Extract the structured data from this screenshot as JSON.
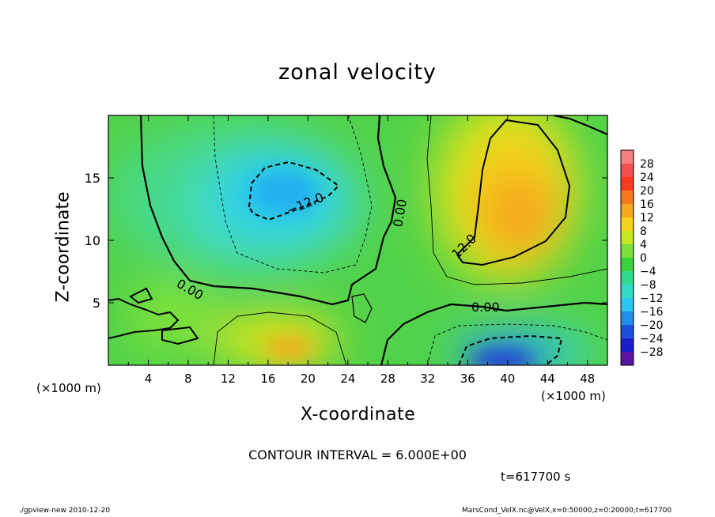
{
  "chart_data": {
    "type": "heatmap",
    "title": "zonal velocity",
    "xlabel": "X-coordinate",
    "ylabel": "Z-coordinate",
    "x_unit_left": "(×1000 m)",
    "x_unit_right": "(×1000 m)",
    "xlim": [
      0,
      50
    ],
    "ylim": [
      0,
      20
    ],
    "x_ticks": [
      "4",
      "8",
      "12",
      "16",
      "20",
      "24",
      "28",
      "32",
      "36",
      "40",
      "44",
      "48"
    ],
    "y_ticks": [
      "5",
      "10",
      "15"
    ],
    "colorbar_labels": [
      "28",
      "24",
      "20",
      "16",
      "12",
      "8",
      "4",
      "0",
      "−4",
      "−8",
      "−12",
      "−16",
      "−20",
      "−24",
      "−28"
    ],
    "contour_labels": [
      "−12.0",
      "0.00",
      "0.00",
      "12.0",
      "0.00"
    ],
    "contour_interval_text": "CONTOUR INTERVAL = 6.000E+00",
    "time_text": "t=617700  s",
    "field_features": [
      {
        "x": 18,
        "z": 13.5,
        "value": -12
      },
      {
        "x": 41,
        "z": 12,
        "value": 15
      },
      {
        "x": 19.5,
        "z": 1.5,
        "value": 12
      },
      {
        "x": 39,
        "z": 0.8,
        "value": -22
      }
    ]
  },
  "footer": {
    "left": "./gpview-new   2010-12-20",
    "right": "MarsCond_VelX.nc@VelX,x=0:50000,z=0:20000,t=617700"
  }
}
